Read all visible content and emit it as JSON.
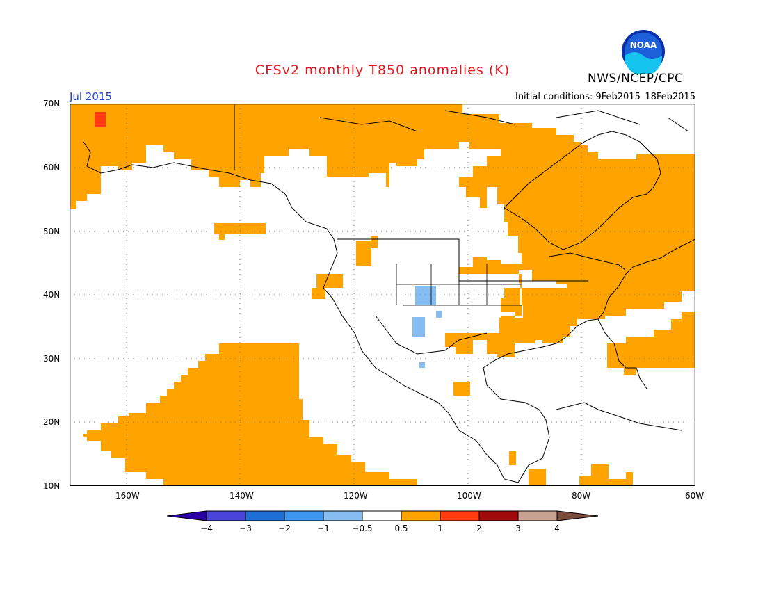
{
  "title": "CFSv2 monthly T850 anomalies (K)",
  "credit": "NWS/NCEP/CPC",
  "logo_text": "NOAA",
  "valid_month": "Jul 2015",
  "initial_conditions": "Initial conditions:  9Feb2015–18Feb2015",
  "map": {
    "lon_range": [
      -170,
      -60
    ],
    "lat_range": [
      10,
      70
    ],
    "lat_labels": [
      "70N",
      "60N",
      "50N",
      "40N",
      "30N",
      "20N",
      "10N"
    ],
    "lon_labels": [
      "160W",
      "140W",
      "120W",
      "100W",
      "80W",
      "60W"
    ],
    "anomaly_regions": [
      {
        "name": "alaska-yukon-arctic",
        "level": "0.5 to 1"
      },
      {
        "name": "eastern-canada-us",
        "level": "0.5 to 1"
      },
      {
        "name": "north-pacific-subtropical",
        "level": "0.5 to 1"
      },
      {
        "name": "western-atlantic",
        "level": "0.5 to 1"
      },
      {
        "name": "caribbean",
        "level": "0.5 to 1"
      },
      {
        "name": "western-alaska-spot",
        "level": "1 to 2"
      },
      {
        "name": "four-corners",
        "level": "-1 to -0.5"
      }
    ]
  },
  "colorbar": {
    "labels": [
      "−4",
      "−3",
      "−2",
      "−1",
      "−0.5",
      "0.5",
      "1",
      "2",
      "3",
      "4"
    ],
    "colors": [
      "#2a00a0",
      "#4a45d8",
      "#1f6ed6",
      "#3f96f0",
      "#85bdf2",
      "#ffffff",
      "#ffa300",
      "#ff3b12",
      "#a00a0a",
      "#c8a290",
      "#7a4a3a"
    ]
  }
}
